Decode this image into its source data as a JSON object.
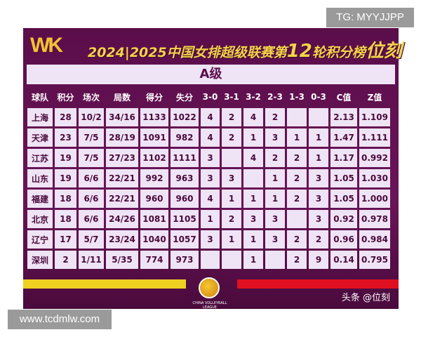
{
  "logo": "WK",
  "title_pre": "2024|2025中国女排超级联赛第",
  "title_round": "12",
  "title_post": "轮积分榜",
  "title_brand": "位刻",
  "grade": "A级",
  "headers": [
    "球队",
    "积分",
    "场次",
    "局数",
    "得分",
    "失分",
    "3-0",
    "3-1",
    "3-2",
    "2-3",
    "1-3",
    "0-3",
    "C值",
    "Z值"
  ],
  "rows": [
    [
      "上海",
      "28",
      "10/2",
      "34/16",
      "1133",
      "1022",
      "4",
      "2",
      "4",
      "2",
      "",
      "",
      "2.13",
      "1.109"
    ],
    [
      "天津",
      "23",
      "7/5",
      "28/19",
      "1091",
      "982",
      "4",
      "2",
      "1",
      "3",
      "1",
      "1",
      "1.47",
      "1.111"
    ],
    [
      "江苏",
      "19",
      "7/5",
      "27/23",
      "1102",
      "1111",
      "3",
      "",
      "4",
      "2",
      "2",
      "1",
      "1.17",
      "0.992"
    ],
    [
      "山东",
      "19",
      "6/6",
      "22/21",
      "992",
      "963",
      "3",
      "3",
      "",
      "1",
      "2",
      "3",
      "1.05",
      "1.030"
    ],
    [
      "福建",
      "18",
      "6/6",
      "22/21",
      "960",
      "960",
      "4",
      "1",
      "1",
      "1",
      "2",
      "3",
      "1.05",
      "1.000"
    ],
    [
      "北京",
      "18",
      "6/6",
      "24/26",
      "1081",
      "1105",
      "1",
      "2",
      "3",
      "3",
      "",
      "3",
      "0.92",
      "0.978"
    ],
    [
      "辽宁",
      "17",
      "5/7",
      "23/24",
      "1040",
      "1057",
      "3",
      "1",
      "1",
      "3",
      "2",
      "2",
      "0.96",
      "0.984"
    ],
    [
      "深圳",
      "2",
      "1/11",
      "5/35",
      "774",
      "973",
      "",
      "",
      "1",
      "",
      "2",
      "9",
      "0.14",
      "0.795"
    ]
  ],
  "footer": {
    "league_mark": "CHINA VOLLEYBALL LEAGUE",
    "credit": "头条 @位刻"
  },
  "watermarks": {
    "tg": "TG: MYYJJPP",
    "site": "www.tcdmlw.com"
  },
  "colors": {
    "background": "#5a0e4a",
    "cell": "#efe4f5",
    "accent": "#f5d24a",
    "red": "#e01020"
  }
}
